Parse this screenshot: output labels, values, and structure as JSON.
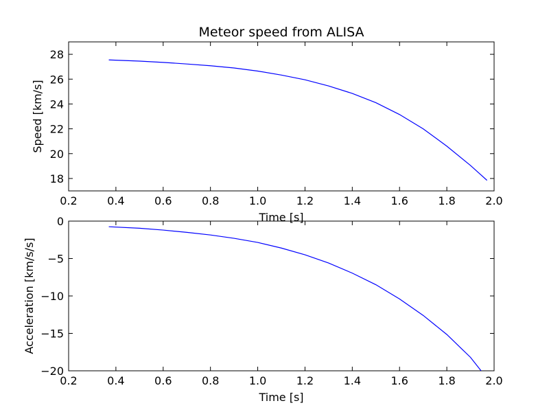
{
  "chart_data": [
    {
      "type": "line",
      "title": "Meteor speed from  ALISA",
      "xlabel": "Time [s]",
      "ylabel": "Speed [km/s]",
      "xlim": [
        0.2,
        2.0
      ],
      "ylim": [
        17.0,
        29.0
      ],
      "xticks": [
        0.2,
        0.4,
        0.6,
        0.8,
        1.0,
        1.2,
        1.4,
        1.6,
        1.8,
        2.0
      ],
      "yticks": [
        18,
        20,
        22,
        24,
        26,
        28
      ],
      "xtick_labels": [
        "0.2",
        "0.4",
        "0.6",
        "0.8",
        "1.0",
        "1.2",
        "1.4",
        "1.6",
        "1.8",
        "2.0"
      ],
      "ytick_labels": [
        "18",
        "20",
        "22",
        "24",
        "26",
        "28"
      ],
      "grid": false,
      "series": [
        {
          "color": "#0000ff",
          "x": [
            0.37,
            0.5,
            0.6,
            0.7,
            0.8,
            0.9,
            1.0,
            1.1,
            1.2,
            1.3,
            1.4,
            1.5,
            1.6,
            1.7,
            1.8,
            1.9,
            1.97
          ],
          "y": [
            27.55,
            27.45,
            27.35,
            27.22,
            27.08,
            26.9,
            26.65,
            26.33,
            25.95,
            25.45,
            24.85,
            24.1,
            23.15,
            22.0,
            20.6,
            19.05,
            17.85
          ]
        }
      ]
    },
    {
      "type": "line",
      "xlabel": "Time [s]",
      "ylabel": "Acceleration [km/s/s]",
      "xlim": [
        0.2,
        2.0
      ],
      "ylim": [
        -20.0,
        0.0
      ],
      "xticks": [
        0.2,
        0.4,
        0.6,
        0.8,
        1.0,
        1.2,
        1.4,
        1.6,
        1.8,
        2.0
      ],
      "yticks": [
        0,
        -5,
        -10,
        -15,
        -20
      ],
      "xtick_labels": [
        "0.2",
        "0.4",
        "0.6",
        "0.8",
        "1.0",
        "1.2",
        "1.4",
        "1.6",
        "1.8",
        "2.0"
      ],
      "ytick_labels": [
        "0",
        "−5",
        "−10",
        "−15",
        "−20"
      ],
      "grid": false,
      "series": [
        {
          "color": "#0000ff",
          "x": [
            0.37,
            0.5,
            0.6,
            0.7,
            0.8,
            0.9,
            1.0,
            1.1,
            1.2,
            1.3,
            1.4,
            1.5,
            1.6,
            1.7,
            1.8,
            1.9,
            1.945
          ],
          "y": [
            -0.75,
            -0.95,
            -1.2,
            -1.5,
            -1.85,
            -2.3,
            -2.85,
            -3.6,
            -4.5,
            -5.6,
            -6.95,
            -8.5,
            -10.4,
            -12.6,
            -15.15,
            -18.2,
            -20.0
          ]
        }
      ]
    }
  ]
}
